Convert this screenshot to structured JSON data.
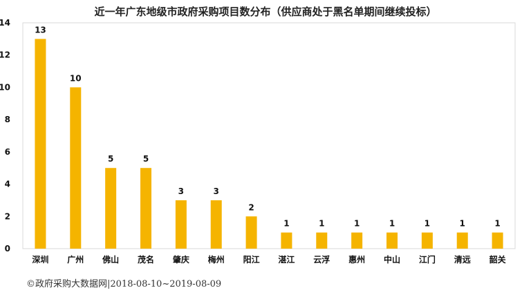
{
  "chart_data": {
    "type": "bar",
    "title": "近一年广东地级市政府采购项目数分布（供应商处于黑名单期间继续投标）",
    "categories": [
      "深圳",
      "广州",
      "佛山",
      "茂名",
      "肇庆",
      "梅州",
      "阳江",
      "湛江",
      "云浮",
      "惠州",
      "中山",
      "江门",
      "清远",
      "韶关"
    ],
    "values": [
      13,
      10,
      5,
      5,
      3,
      3,
      2,
      1,
      1,
      1,
      1,
      1,
      1,
      1
    ],
    "ylim": [
      0,
      14
    ],
    "yticks": [
      0,
      2,
      4,
      6,
      8,
      10,
      12,
      14
    ],
    "xlabel": "",
    "ylabel": "",
    "grid": false,
    "bar_color": "#F5B400",
    "axis_color": "#D9D9D9"
  },
  "source_note": "©政府采购大数据网|2018-08-10~2019-08-09"
}
